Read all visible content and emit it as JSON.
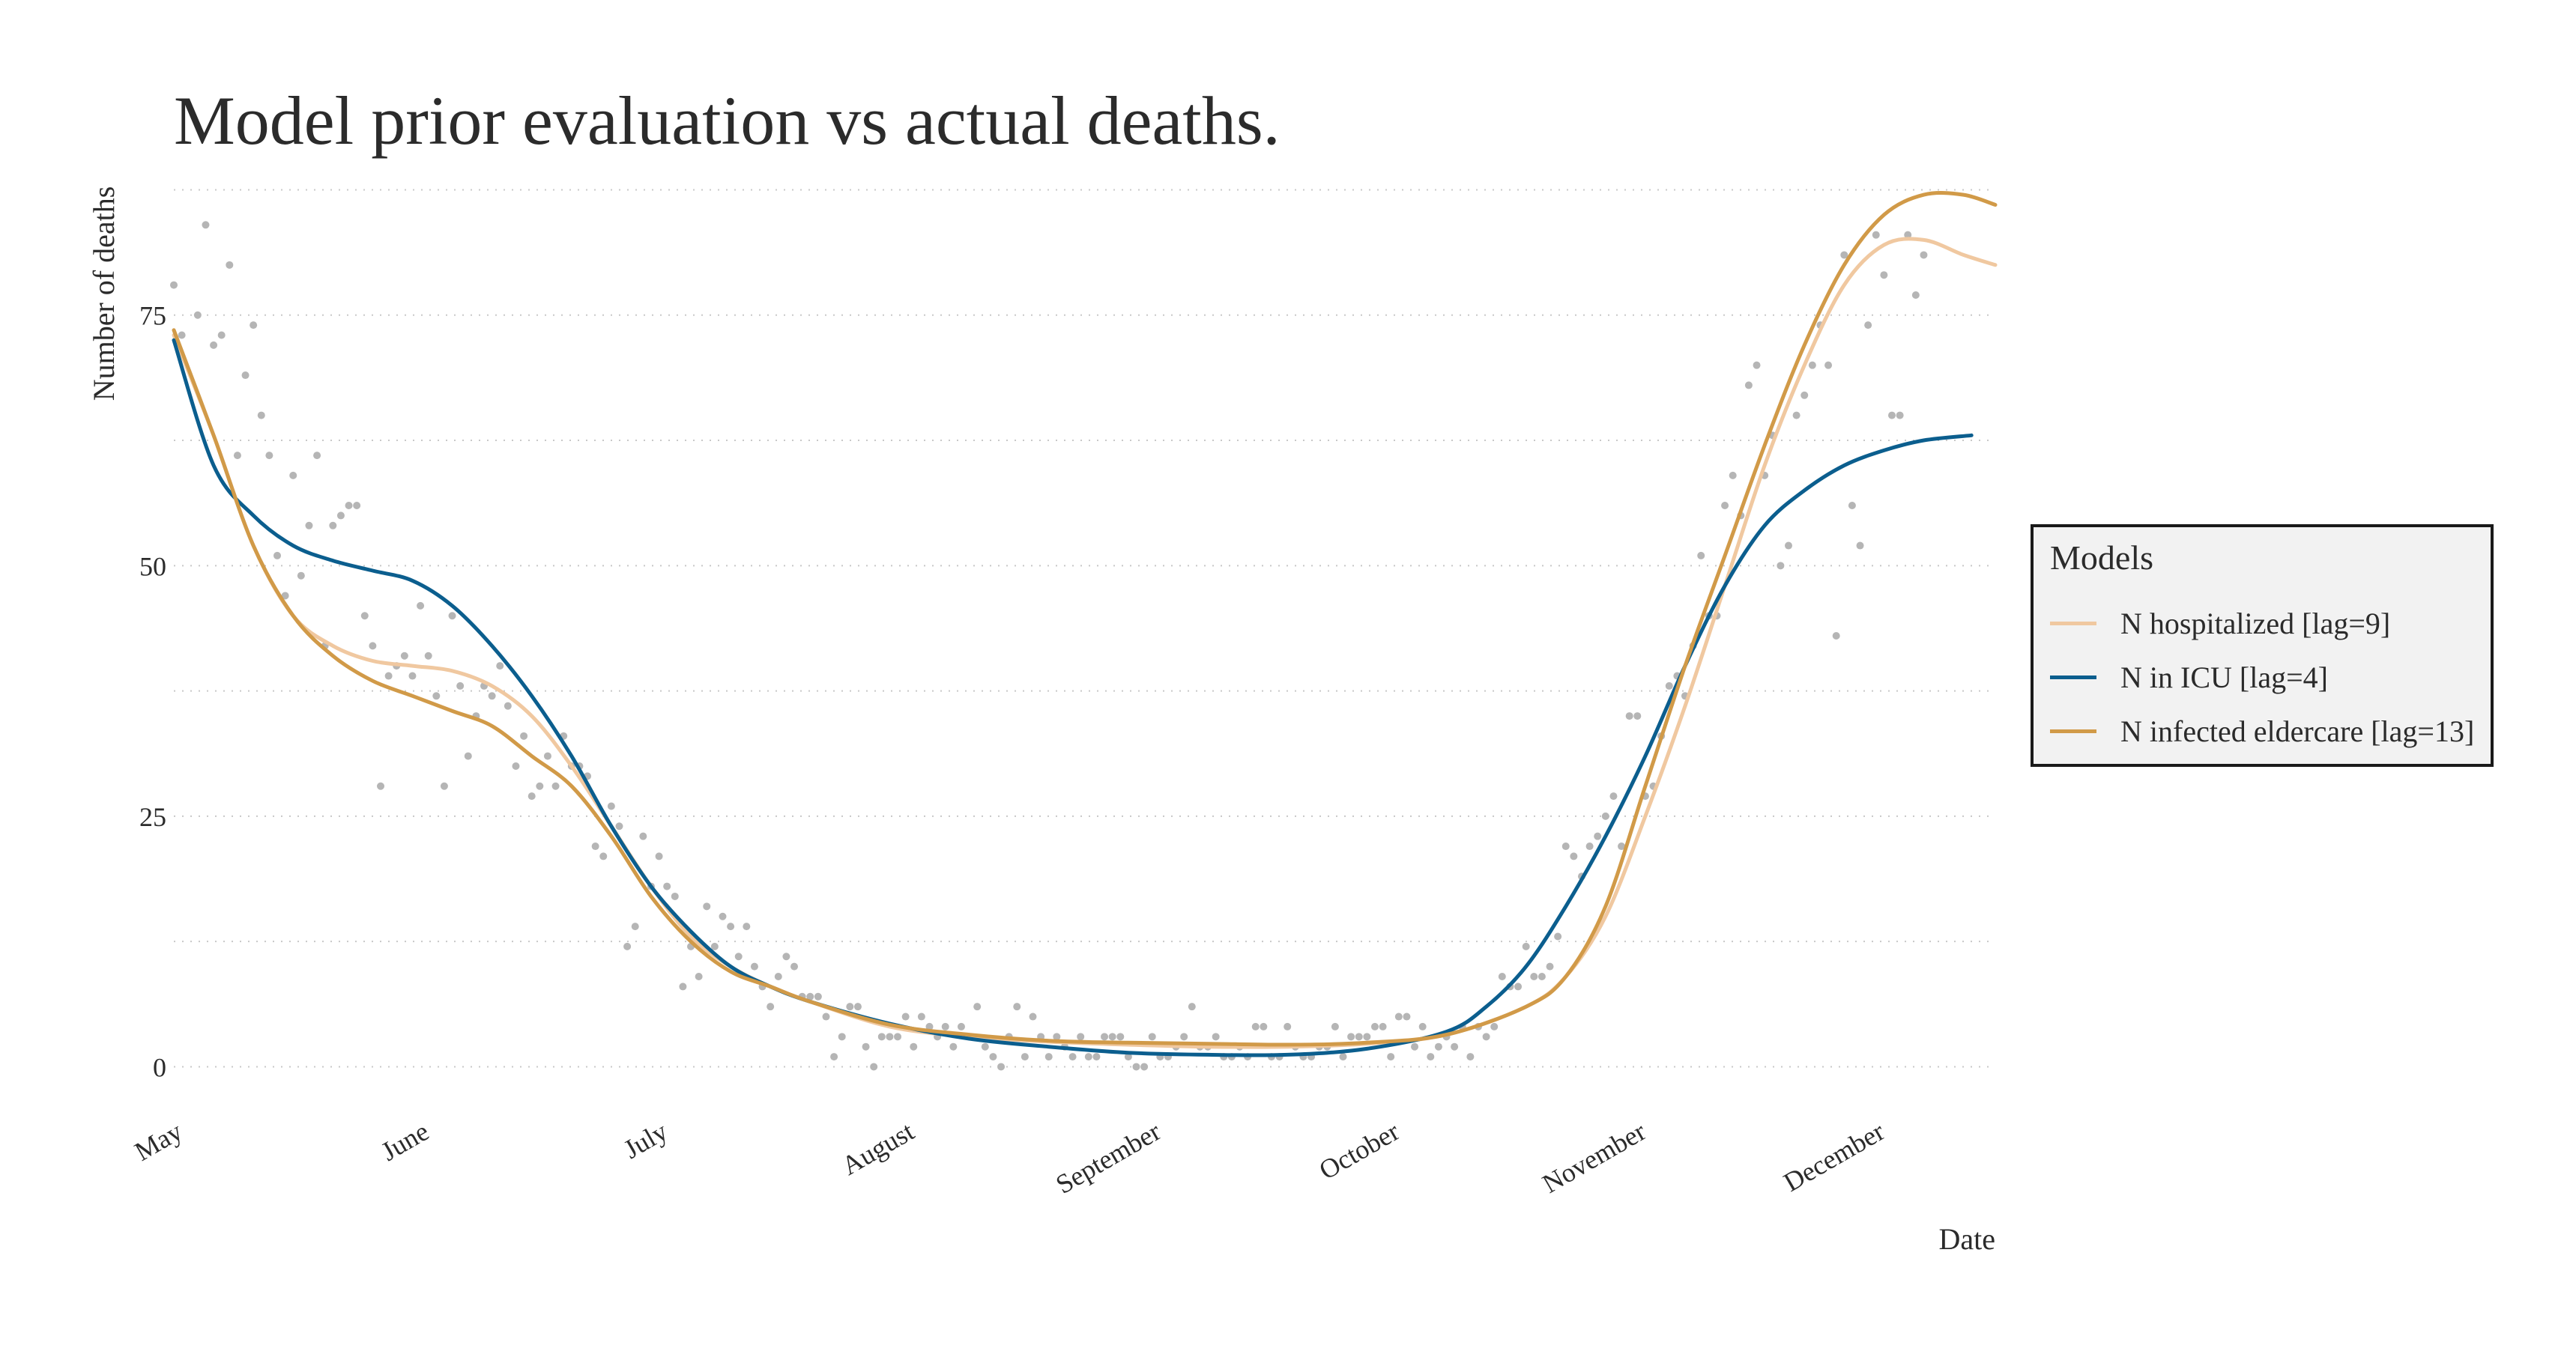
{
  "chart_data": {
    "type": "line",
    "title": "Model prior evaluation vs actual deaths.",
    "xlabel": "Date",
    "ylabel": "Number of deaths",
    "x_ticks": [
      "May",
      "June",
      "July",
      "August",
      "September",
      "October",
      "November",
      "December"
    ],
    "y_ticks": [
      "0",
      "25",
      "50",
      "75"
    ],
    "ylim": [
      -4,
      90
    ],
    "xlim": [
      0,
      229
    ],
    "grid": "horizontal dotted",
    "legend": {
      "title": "Models",
      "placement": "right",
      "entries": [
        {
          "name": "N hospitalized [lag=9]",
          "color": "#f0c8a0"
        },
        {
          "name": "N in ICU [lag=4]",
          "color": "#0b5e8e"
        },
        {
          "name": "N infected eldercare [lag=13]",
          "color": "#d19a48"
        }
      ]
    },
    "x_unit": "days since May 1",
    "points": [
      [
        0,
        78
      ],
      [
        1,
        73
      ],
      [
        3,
        75
      ],
      [
        4,
        84
      ],
      [
        5,
        72
      ],
      [
        6,
        73
      ],
      [
        7,
        80
      ],
      [
        8,
        61
      ],
      [
        9,
        69
      ],
      [
        10,
        74
      ],
      [
        11,
        65
      ],
      [
        12,
        61
      ],
      [
        13,
        51
      ],
      [
        14,
        47
      ],
      [
        15,
        59
      ],
      [
        16,
        49
      ],
      [
        17,
        54
      ],
      [
        18,
        61
      ],
      [
        19,
        42
      ],
      [
        20,
        54
      ],
      [
        21,
        55
      ],
      [
        22,
        56
      ],
      [
        23,
        56
      ],
      [
        24,
        45
      ],
      [
        25,
        42
      ],
      [
        26,
        28
      ],
      [
        27,
        39
      ],
      [
        28,
        40
      ],
      [
        29,
        41
      ],
      [
        30,
        39
      ],
      [
        31,
        46
      ],
      [
        32,
        41
      ],
      [
        33,
        37
      ],
      [
        34,
        28
      ],
      [
        35,
        45
      ],
      [
        36,
        38
      ],
      [
        37,
        31
      ],
      [
        38,
        35
      ],
      [
        39,
        38
      ],
      [
        40,
        37
      ],
      [
        41,
        40
      ],
      [
        42,
        36
      ],
      [
        43,
        30
      ],
      [
        44,
        33
      ],
      [
        45,
        27
      ],
      [
        46,
        28
      ],
      [
        47,
        31
      ],
      [
        48,
        28
      ],
      [
        49,
        33
      ],
      [
        50,
        30
      ],
      [
        51,
        30
      ],
      [
        52,
        29
      ],
      [
        53,
        22
      ],
      [
        54,
        21
      ],
      [
        55,
        26
      ],
      [
        56,
        24
      ],
      [
        57,
        12
      ],
      [
        58,
        14
      ],
      [
        59,
        23
      ],
      [
        60,
        18
      ],
      [
        61,
        21
      ],
      [
        62,
        18
      ],
      [
        63,
        17
      ],
      [
        64,
        8
      ],
      [
        65,
        12
      ],
      [
        66,
        9
      ],
      [
        67,
        16
      ],
      [
        68,
        12
      ],
      [
        69,
        15
      ],
      [
        70,
        14
      ],
      [
        71,
        11
      ],
      [
        72,
        14
      ],
      [
        73,
        10
      ],
      [
        74,
        8
      ],
      [
        75,
        6
      ],
      [
        76,
        9
      ],
      [
        77,
        11
      ],
      [
        78,
        10
      ],
      [
        79,
        7
      ],
      [
        80,
        7
      ],
      [
        81,
        7
      ],
      [
        82,
        5
      ],
      [
        83,
        1
      ],
      [
        84,
        3
      ],
      [
        85,
        6
      ],
      [
        86,
        6
      ],
      [
        87,
        2
      ],
      [
        88,
        0
      ],
      [
        89,
        3
      ],
      [
        90,
        3
      ],
      [
        91,
        3
      ],
      [
        92,
        5
      ],
      [
        93,
        2
      ],
      [
        94,
        5
      ],
      [
        95,
        4
      ],
      [
        96,
        3
      ],
      [
        97,
        4
      ],
      [
        98,
        2
      ],
      [
        99,
        4
      ],
      [
        100,
        3
      ],
      [
        101,
        6
      ],
      [
        102,
        2
      ],
      [
        103,
        1
      ],
      [
        104,
        0
      ],
      [
        105,
        3
      ],
      [
        106,
        6
      ],
      [
        107,
        1
      ],
      [
        108,
        5
      ],
      [
        109,
        3
      ],
      [
        110,
        1
      ],
      [
        111,
        3
      ],
      [
        112,
        2
      ],
      [
        113,
        1
      ],
      [
        114,
        3
      ],
      [
        115,
        1
      ],
      [
        116,
        1
      ],
      [
        117,
        3
      ],
      [
        118,
        3
      ],
      [
        119,
        3
      ],
      [
        120,
        1
      ],
      [
        121,
        0
      ],
      [
        122,
        0
      ],
      [
        123,
        3
      ],
      [
        124,
        1
      ],
      [
        125,
        1
      ],
      [
        126,
        2
      ],
      [
        127,
        3
      ],
      [
        128,
        6
      ],
      [
        129,
        2
      ],
      [
        130,
        2
      ],
      [
        131,
        3
      ],
      [
        132,
        1
      ],
      [
        133,
        1
      ],
      [
        134,
        2
      ],
      [
        135,
        1
      ],
      [
        136,
        4
      ],
      [
        137,
        4
      ],
      [
        138,
        1
      ],
      [
        139,
        1
      ],
      [
        140,
        4
      ],
      [
        141,
        2
      ],
      [
        142,
        1
      ],
      [
        143,
        1
      ],
      [
        144,
        2
      ],
      [
        145,
        2
      ],
      [
        146,
        4
      ],
      [
        147,
        1
      ],
      [
        148,
        3
      ],
      [
        149,
        3
      ],
      [
        150,
        3
      ],
      [
        151,
        4
      ],
      [
        152,
        4
      ],
      [
        153,
        1
      ],
      [
        154,
        5
      ],
      [
        155,
        5
      ],
      [
        156,
        2
      ],
      [
        157,
        4
      ],
      [
        158,
        1
      ],
      [
        159,
        2
      ],
      [
        160,
        3
      ],
      [
        161,
        2
      ],
      [
        162,
        4
      ],
      [
        163,
        1
      ],
      [
        164,
        4
      ],
      [
        165,
        3
      ],
      [
        166,
        4
      ],
      [
        167,
        9
      ],
      [
        168,
        8
      ],
      [
        169,
        8
      ],
      [
        170,
        12
      ],
      [
        171,
        9
      ],
      [
        172,
        9
      ],
      [
        173,
        10
      ],
      [
        174,
        13
      ],
      [
        175,
        22
      ],
      [
        176,
        21
      ],
      [
        177,
        19
      ],
      [
        178,
        22
      ],
      [
        179,
        23
      ],
      [
        180,
        25
      ],
      [
        181,
        27
      ],
      [
        182,
        22
      ],
      [
        183,
        35
      ],
      [
        184,
        35
      ],
      [
        185,
        27
      ],
      [
        186,
        28
      ],
      [
        187,
        33
      ],
      [
        188,
        38
      ],
      [
        189,
        39
      ],
      [
        190,
        37
      ],
      [
        191,
        42
      ],
      [
        192,
        51
      ],
      [
        193,
        45
      ],
      [
        194,
        45
      ],
      [
        195,
        56
      ],
      [
        196,
        59
      ],
      [
        197,
        55
      ],
      [
        198,
        68
      ],
      [
        199,
        70
      ],
      [
        200,
        59
      ],
      [
        201,
        63
      ],
      [
        202,
        50
      ],
      [
        203,
        52
      ],
      [
        204,
        65
      ],
      [
        205,
        67
      ],
      [
        206,
        70
      ],
      [
        207,
        74
      ],
      [
        208,
        70
      ],
      [
        209,
        43
      ],
      [
        210,
        81
      ],
      [
        211,
        56
      ],
      [
        212,
        52
      ],
      [
        213,
        74
      ],
      [
        214,
        83
      ],
      [
        215,
        79
      ],
      [
        216,
        65
      ],
      [
        217,
        65
      ],
      [
        218,
        83
      ],
      [
        219,
        77
      ],
      [
        220,
        81
      ]
    ],
    "series": [
      {
        "name": "N hospitalized [lag=9]",
        "color": "#f0c8a0",
        "x": [
          0,
          5,
          10,
          15,
          20,
          25,
          30,
          35,
          40,
          45,
          50,
          55,
          60,
          65,
          70,
          75,
          80,
          90,
          100,
          110,
          120,
          130,
          140,
          150,
          160,
          170,
          175,
          180,
          185,
          190,
          195,
          200,
          205,
          210,
          215,
          220,
          225,
          229
        ],
        "y": [
          73,
          63,
          52,
          45,
          42,
          40.5,
          40,
          39.5,
          38,
          35,
          30,
          24,
          18,
          13,
          10,
          8,
          6.5,
          4,
          3,
          2.5,
          2.2,
          2,
          2,
          2.3,
          3.2,
          6,
          9,
          15,
          25,
          36,
          48,
          60,
          70,
          78,
          82,
          82.5,
          81,
          80
        ]
      },
      {
        "name": "N in ICU [lag=4]",
        "color": "#0b5e8e",
        "x": [
          0,
          5,
          10,
          15,
          20,
          25,
          30,
          35,
          40,
          45,
          50,
          55,
          60,
          65,
          70,
          75,
          80,
          90,
          100,
          110,
          120,
          130,
          140,
          150,
          160,
          165,
          170,
          175,
          180,
          185,
          190,
          195,
          200,
          205,
          210,
          215,
          220,
          226
        ],
        "y": [
          72.5,
          60,
          55,
          52,
          50.5,
          49.5,
          48.5,
          46,
          42,
          37,
          31,
          24,
          18,
          13.5,
          10,
          8,
          6.5,
          4.3,
          2.8,
          2,
          1.4,
          1.2,
          1.2,
          1.8,
          3.5,
          6,
          10,
          16,
          23,
          31,
          40,
          48,
          54,
          57.5,
          60,
          61.5,
          62.5,
          63
        ]
      },
      {
        "name": "N infected eldercare [lag=13]",
        "color": "#d19a48",
        "x": [
          0,
          5,
          10,
          15,
          20,
          25,
          30,
          35,
          40,
          45,
          50,
          55,
          60,
          65,
          70,
          75,
          80,
          90,
          100,
          110,
          120,
          130,
          140,
          150,
          160,
          170,
          175,
          180,
          185,
          190,
          195,
          200,
          205,
          210,
          215,
          220,
          225,
          229
        ],
        "y": [
          73.5,
          63,
          52,
          45,
          41,
          38.5,
          37,
          35.5,
          34,
          31,
          28,
          23,
          17,
          12.5,
          9.5,
          8,
          6.5,
          4.2,
          3.2,
          2.6,
          2.4,
          2.3,
          2.2,
          2.4,
          3.2,
          6,
          9,
          16,
          28,
          40,
          51,
          62,
          72,
          80,
          85,
          87,
          87,
          86
        ]
      }
    ]
  }
}
